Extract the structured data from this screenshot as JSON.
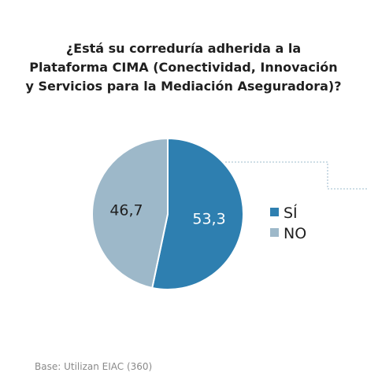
{
  "title_lines": [
    "¿Está su correduría adherida a la",
    "Plataforma CIMA (Conectividad, Innovación",
    "y Servicios para la Mediación Aseguradora)?"
  ],
  "base_note": "Base: Utilizan EIAC (360)",
  "chart_data": {
    "type": "pie",
    "title": "¿Está su correduría adherida a la Plataforma CIMA (Conectividad, Innovación y Servicios para la Mediación Aseguradora)?",
    "slices": [
      {
        "label": "SÍ",
        "value": 53.3,
        "value_label": "53,3",
        "color": "#2e7fb0",
        "label_color": "#ffffff"
      },
      {
        "label": "NO",
        "value": 46.7,
        "value_label": "46,7",
        "color": "#9db8c9",
        "label_color": "#1f1f1f"
      }
    ],
    "legend_position": "right",
    "start_angle": "top",
    "direction": "clockwise"
  }
}
